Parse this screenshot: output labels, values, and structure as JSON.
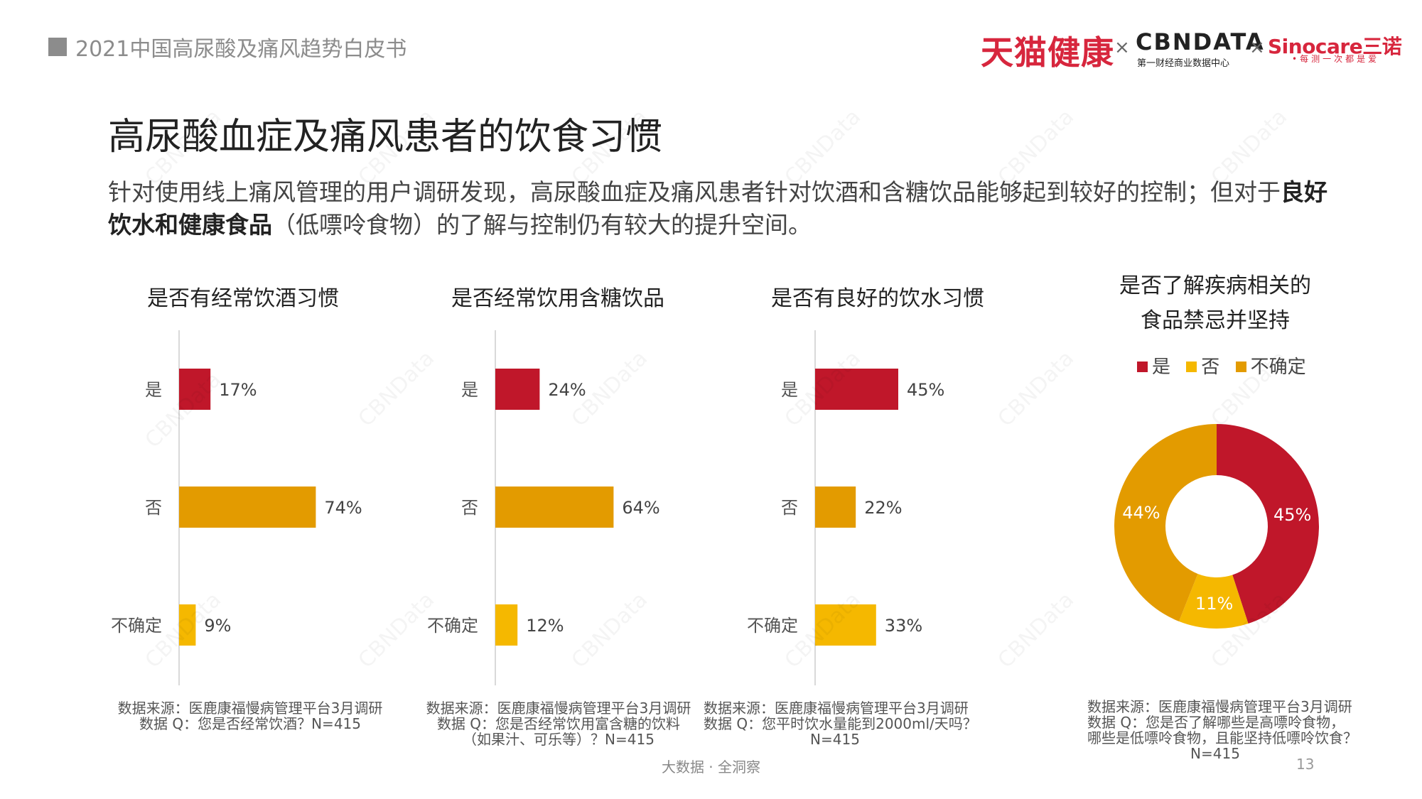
{
  "header": {
    "doc_title": "2021中国高尿酸及痛风趋势白皮书",
    "logo_tmall": "天猫健康",
    "times": "×",
    "logo_cbn": "CBNDATA",
    "logo_cbn_sub": "第一财经商业数据中心",
    "logo_sino": "Sinocare三诺",
    "logo_sino_sub": "•每测一次都是爱"
  },
  "slide_title": "高尿酸血症及痛风患者的饮食习惯",
  "intro": {
    "part1": "针对使用线上痛风管理的用户调研发现，高尿酸血症及痛风患者针对饮酒和含糖饮品能够起到较好的控制；但对于",
    "bold": "良好饮水和健康食品",
    "part2": "（低嘌呤食物）的了解与控制仍有较大的提升空间。"
  },
  "colors": {
    "yes": "#c0172a",
    "no": "#e39b00",
    "unsure": "#f5b800",
    "axis": "#d9d9d9"
  },
  "chart_data": [
    {
      "type": "bar",
      "title": "是否有经常饮酒习惯",
      "categories": [
        "是",
        "否",
        "不确定"
      ],
      "values": [
        17,
        74,
        9
      ],
      "unit": "%"
    },
    {
      "type": "bar",
      "title": "是否经常饮用含糖饮品",
      "categories": [
        "是",
        "否",
        "不确定"
      ],
      "values": [
        24,
        64,
        12
      ],
      "unit": "%"
    },
    {
      "type": "bar",
      "title": "是否有良好的饮水习惯",
      "categories": [
        "是",
        "否",
        "不确定"
      ],
      "values": [
        45,
        22,
        33
      ],
      "unit": "%"
    },
    {
      "type": "pie",
      "title_line1": "是否了解疾病相关的",
      "title_line2": "食品禁忌并坚持",
      "categories": [
        "是",
        "否",
        "不确定"
      ],
      "values": [
        45,
        11,
        44
      ],
      "unit": "%",
      "legend": "top"
    }
  ],
  "sources": [
    [
      "数据来源：医鹿康福慢病管理平台3月调研",
      "数据 Q：您是否经常饮酒？N=415"
    ],
    [
      "数据来源：医鹿康福慢病管理平台3月调研",
      "数据 Q：您是否经常饮用富含糖的饮料",
      "（如果汁、可乐等）？N=415"
    ],
    [
      "数据来源：医鹿康福慢病管理平台3月调研",
      "数据 Q：您平时饮水量能到2000ml/天吗？",
      "N=415"
    ],
    [
      "数据来源：医鹿康福慢病管理平台3月调研",
      "数据 Q：您是否了解哪些是高嘌呤食物，",
      "哪些是低嘌呤食物，且能坚持低嘌呤饮食？",
      "N=415"
    ]
  ],
  "footer": "大数据 · 全洞察",
  "page_number": "13",
  "watermark": "CBNData"
}
